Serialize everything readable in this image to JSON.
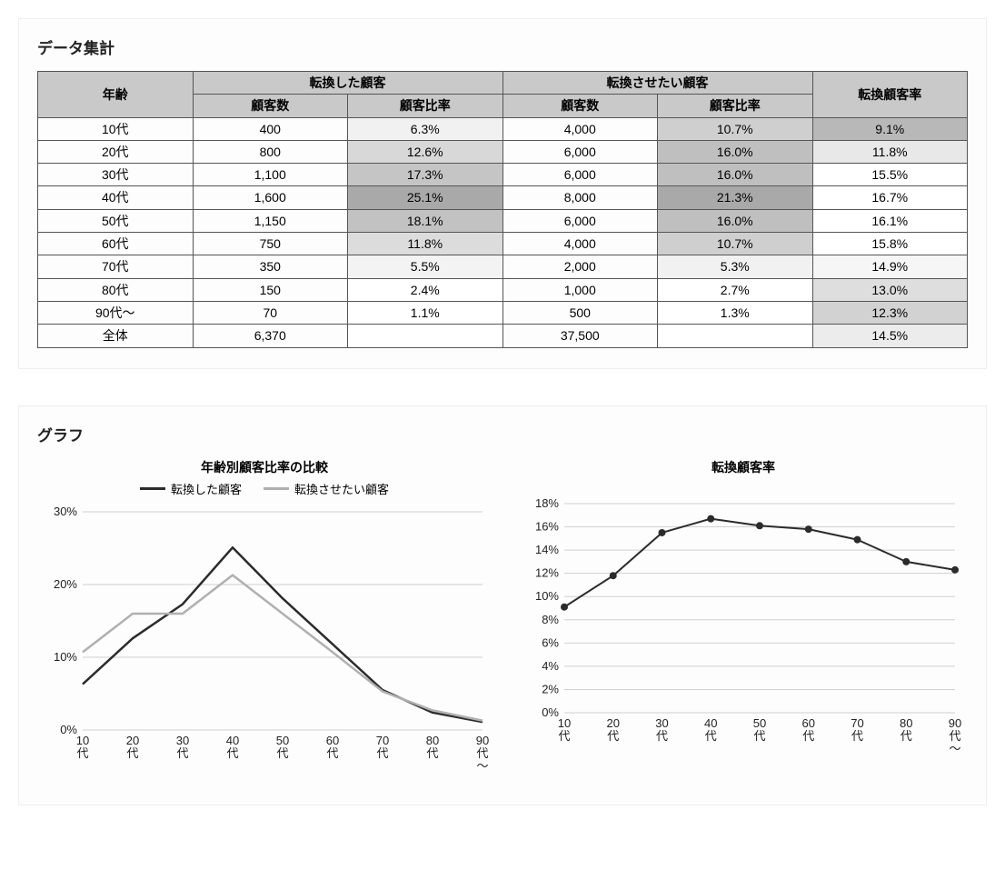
{
  "section_table_title": "データ集計",
  "section_chart_title": "グラフ",
  "table": {
    "col_age": "年齢",
    "col_converted_group": "転換した顧客",
    "col_want_group": "転換させたい顧客",
    "col_rate": "転換顧客率",
    "sub_count": "顧客数",
    "sub_ratio": "顧客比率",
    "rows": [
      {
        "age": "10代",
        "c_count": "400",
        "c_ratio": "6.3%",
        "w_count": "4,000",
        "w_ratio": "10.7%",
        "rate": "9.1%",
        "c_shade": "#f1f1f1",
        "w_shade": "#cfcfcf",
        "r_shade": "#b8b8b8"
      },
      {
        "age": "20代",
        "c_count": "800",
        "c_ratio": "12.6%",
        "w_count": "6,000",
        "w_ratio": "16.0%",
        "rate": "11.8%",
        "c_shade": "#d8d8d8",
        "w_shade": "#bfbfbf",
        "r_shade": "#e8e8e8"
      },
      {
        "age": "30代",
        "c_count": "1,100",
        "c_ratio": "17.3%",
        "w_count": "6,000",
        "w_ratio": "16.0%",
        "rate": "15.5%",
        "c_shade": "#c5c5c5",
        "w_shade": "#bfbfbf",
        "r_shade": "#ffffff"
      },
      {
        "age": "40代",
        "c_count": "1,600",
        "c_ratio": "25.1%",
        "w_count": "8,000",
        "w_ratio": "21.3%",
        "rate": "16.7%",
        "c_shade": "#a9a9a9",
        "w_shade": "#a9a9a9",
        "r_shade": "#ffffff"
      },
      {
        "age": "50代",
        "c_count": "1,150",
        "c_ratio": "18.1%",
        "w_count": "6,000",
        "w_ratio": "16.0%",
        "rate": "16.1%",
        "c_shade": "#c2c2c2",
        "w_shade": "#bfbfbf",
        "r_shade": "#ffffff"
      },
      {
        "age": "60代",
        "c_count": "750",
        "c_ratio": "11.8%",
        "w_count": "4,000",
        "w_ratio": "10.7%",
        "rate": "15.8%",
        "c_shade": "#dcdcdc",
        "w_shade": "#cfcfcf",
        "r_shade": "#ffffff"
      },
      {
        "age": "70代",
        "c_count": "350",
        "c_ratio": "5.5%",
        "w_count": "2,000",
        "w_ratio": "5.3%",
        "rate": "14.9%",
        "c_shade": "#f3f3f3",
        "w_shade": "#f1f1f1",
        "r_shade": "#f6f6f6"
      },
      {
        "age": "80代",
        "c_count": "150",
        "c_ratio": "2.4%",
        "w_count": "1,000",
        "w_ratio": "2.7%",
        "rate": "13.0%",
        "c_shade": "#ffffff",
        "w_shade": "#ffffff",
        "r_shade": "#dedede"
      },
      {
        "age": "90代～",
        "c_count": "70",
        "c_ratio": "1.1%",
        "w_count": "500",
        "w_ratio": "1.3%",
        "rate": "12.3%",
        "c_shade": "#ffffff",
        "w_shade": "#ffffff",
        "r_shade": "#d2d2d2"
      },
      {
        "age": "全体",
        "c_count": "6,370",
        "c_ratio": "",
        "w_count": "37,500",
        "w_ratio": "",
        "rate": "14.5%",
        "c_shade": "#ffffff",
        "w_shade": "#ffffff",
        "r_shade": "#ececec"
      }
    ]
  },
  "chart1": {
    "type": "line",
    "title": "年齢別顧客比率の比較",
    "legend": [
      {
        "label": "転換した顧客",
        "color": "#2b2b2b",
        "width": 3
      },
      {
        "label": "転換させたい顧客",
        "color": "#b0b0b0",
        "width": 3
      }
    ],
    "x_labels": [
      "10\n代",
      "20\n代",
      "30\n代",
      "40\n代",
      "50\n代",
      "60\n代",
      "70\n代",
      "80\n代",
      "90\n代\n～"
    ],
    "y_ticks": [
      0,
      10,
      20,
      30
    ],
    "y_suffix": "%",
    "ylim": [
      0,
      30
    ],
    "series": [
      {
        "color": "#2b2b2b",
        "width": 2.5,
        "values": [
          6.3,
          12.6,
          17.3,
          25.1,
          18.1,
          11.8,
          5.5,
          2.4,
          1.1
        ]
      },
      {
        "color": "#b0b0b0",
        "width": 2.5,
        "values": [
          10.7,
          16.0,
          16.0,
          21.3,
          16.0,
          10.7,
          5.3,
          2.7,
          1.3
        ]
      }
    ],
    "background": "#ffffff",
    "grid_color": "#d0d0d0",
    "markers": false
  },
  "chart2": {
    "type": "line",
    "title": "転換顧客率",
    "x_labels": [
      "10\n代",
      "20\n代",
      "30\n代",
      "40\n代",
      "50\n代",
      "60\n代",
      "70\n代",
      "80\n代",
      "90\n代\n～"
    ],
    "y_ticks": [
      0,
      2,
      4,
      6,
      8,
      10,
      12,
      14,
      16,
      18
    ],
    "y_suffix": "%",
    "ylim": [
      0,
      18
    ],
    "series": [
      {
        "color": "#2b2b2b",
        "width": 2,
        "values": [
          9.1,
          11.8,
          15.5,
          16.7,
          16.1,
          15.8,
          14.9,
          13.0,
          12.3
        ]
      }
    ],
    "background": "#ffffff",
    "grid_color": "#d0d0d0",
    "markers": true,
    "marker_radius": 4,
    "marker_color": "#2b2b2b"
  }
}
